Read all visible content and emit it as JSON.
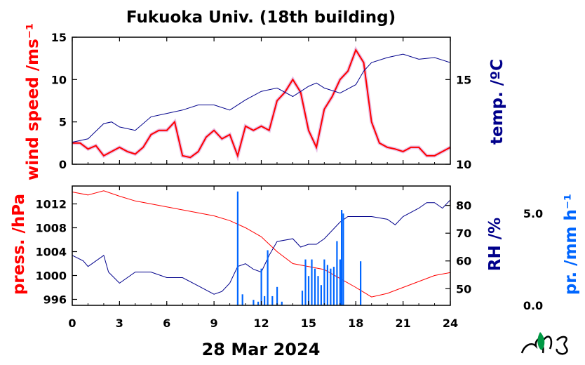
{
  "title": "Fukuoka Univ. (18th building)",
  "date_label": "28 Mar 2024",
  "colors": {
    "wind": "#ff0000",
    "wind_raw": "#cc77cc",
    "temp": "#00008b",
    "pressure": "#ff0000",
    "rh": "#00008b",
    "precip": "#0066ff",
    "logo": "#009944"
  },
  "chart_data": [
    {
      "type": "line",
      "panel": "top",
      "xlim": [
        0,
        24
      ],
      "xticks": [
        0,
        3,
        6,
        9,
        12,
        15,
        18,
        21,
        24
      ],
      "left_axis": {
        "label": "wind speed /ms⁻¹",
        "ylim": [
          0,
          15
        ],
        "ticks": [
          0,
          5,
          10,
          15
        ]
      },
      "right_axis": {
        "label": "temp. /ºC",
        "ylim": [
          10,
          17.5
        ],
        "ticks": [
          10,
          15
        ]
      },
      "series": [
        {
          "axis": "left",
          "style": "smoothed",
          "x": [
            0,
            0.5,
            1,
            1.5,
            2,
            2.5,
            3,
            3.5,
            4,
            4.5,
            5,
            5.5,
            6,
            6.5,
            7,
            7.5,
            8,
            8.5,
            9,
            9.5,
            10,
            10.5,
            11,
            11.5,
            12,
            12.5,
            13,
            13.5,
            14,
            14.5,
            15,
            15.5,
            16,
            16.5,
            17,
            17.5,
            18,
            18.5,
            19,
            19.5,
            20,
            20.5,
            21,
            21.5,
            22,
            22.5,
            23,
            23.5,
            24
          ],
          "values": [
            2.5,
            2.5,
            1.8,
            2.2,
            1.0,
            1.5,
            2.0,
            1.5,
            1.2,
            2.0,
            3.5,
            4.0,
            4.0,
            5.0,
            1.0,
            0.8,
            1.5,
            3.2,
            4.0,
            3.0,
            3.5,
            1.0,
            4.5,
            4.0,
            4.5,
            4.0,
            7.5,
            8.5,
            10.0,
            8.5,
            4.0,
            2.0,
            6.5,
            8.0,
            10.0,
            11.0,
            13.5,
            12.0,
            5.0,
            2.5,
            2.0,
            1.8,
            1.5,
            2.0,
            2.0,
            1.0,
            1.0,
            1.5,
            2.0
          ]
        },
        {
          "axis": "right",
          "style": "line",
          "x": [
            0,
            1,
            2,
            2.5,
            3,
            4,
            5,
            6,
            7,
            8,
            9,
            10,
            11,
            12,
            13,
            14,
            15,
            15.5,
            16,
            17,
            18,
            18.5,
            19,
            20,
            21,
            22,
            23,
            24
          ],
          "values": [
            11.3,
            11.5,
            12.4,
            12.5,
            12.2,
            12.0,
            12.8,
            13.0,
            13.2,
            13.5,
            13.5,
            13.2,
            13.8,
            14.3,
            14.5,
            14.0,
            14.6,
            14.8,
            14.5,
            14.2,
            14.7,
            15.5,
            16.0,
            16.3,
            16.5,
            16.2,
            16.3,
            16.0
          ]
        }
      ]
    },
    {
      "type": "line",
      "panel": "bottom",
      "xlim": [
        0,
        24
      ],
      "xticks": [
        0,
        3,
        6,
        9,
        12,
        15,
        18,
        21,
        24
      ],
      "xtick_labels": [
        "0",
        "3",
        "6",
        "9",
        "12",
        "15",
        "18",
        "21",
        "24"
      ],
      "left_axis": {
        "label": "press. /hPa",
        "ylim": [
          995,
          1015
        ],
        "ticks": [
          996,
          1000,
          1004,
          1008,
          1012
        ]
      },
      "right_axis": {
        "label": "RH /%",
        "ylim": [
          44,
          87
        ],
        "ticks": [
          50,
          60,
          70,
          80
        ]
      },
      "precip_axis": {
        "label": "pr. /mm h⁻¹",
        "ylim": [
          0,
          6.5
        ],
        "ticks": [
          "0.0",
          "5.0"
        ]
      },
      "series": [
        {
          "axis": "left",
          "style": "line",
          "x": [
            0,
            1,
            2,
            3,
            4,
            5,
            6,
            7,
            8,
            9,
            10,
            11,
            12,
            13,
            14,
            15,
            16,
            17,
            18,
            19,
            20,
            21,
            22,
            23,
            24
          ],
          "values": [
            1014.0,
            1013.5,
            1014.2,
            1013.3,
            1012.5,
            1012.0,
            1011.5,
            1011.0,
            1010.5,
            1010.0,
            1009.2,
            1008.0,
            1006.5,
            1004.0,
            1002.0,
            1001.5,
            1001.0,
            999.5,
            998.0,
            996.4,
            997.0,
            998.0,
            999.0,
            1000.0,
            1000.5
          ]
        },
        {
          "axis": "right",
          "style": "line",
          "x": [
            0,
            0.7,
            1,
            2,
            2.3,
            3,
            4,
            5,
            6,
            7,
            8,
            9,
            9.5,
            10,
            10.5,
            11,
            11.5,
            12,
            12.5,
            13,
            14,
            14.5,
            15,
            15.5,
            16,
            17,
            17.5,
            18,
            19,
            20,
            20.5,
            21,
            22,
            22.5,
            23,
            23.5,
            24
          ],
          "values": [
            62,
            60,
            58,
            62,
            56,
            52,
            56,
            56,
            54,
            54,
            51,
            48,
            49,
            52,
            58,
            59,
            57,
            56,
            62,
            67,
            68,
            65,
            66,
            66,
            68,
            74,
            76,
            76,
            76,
            75,
            73,
            76,
            79,
            81,
            81,
            79,
            82
          ]
        },
        {
          "axis": "precip",
          "style": "bars",
          "x": [
            10.5,
            10.8,
            11.5,
            11.8,
            12.0,
            12.2,
            12.4,
            12.7,
            13.0,
            13.3,
            14.6,
            14.8,
            15.0,
            15.2,
            15.4,
            15.6,
            15.8,
            16.0,
            16.2,
            16.4,
            16.6,
            16.8,
            17.0,
            17.1,
            17.2,
            18.3
          ],
          "values": [
            6.2,
            0.6,
            0.3,
            0.2,
            2.0,
            0.5,
            3.0,
            0.5,
            1.0,
            0.2,
            0.8,
            2.5,
            1.6,
            2.5,
            2.0,
            1.6,
            1.1,
            2.5,
            2.2,
            2.0,
            2.1,
            3.5,
            2.5,
            5.2,
            5.0,
            2.4
          ]
        }
      ]
    }
  ]
}
